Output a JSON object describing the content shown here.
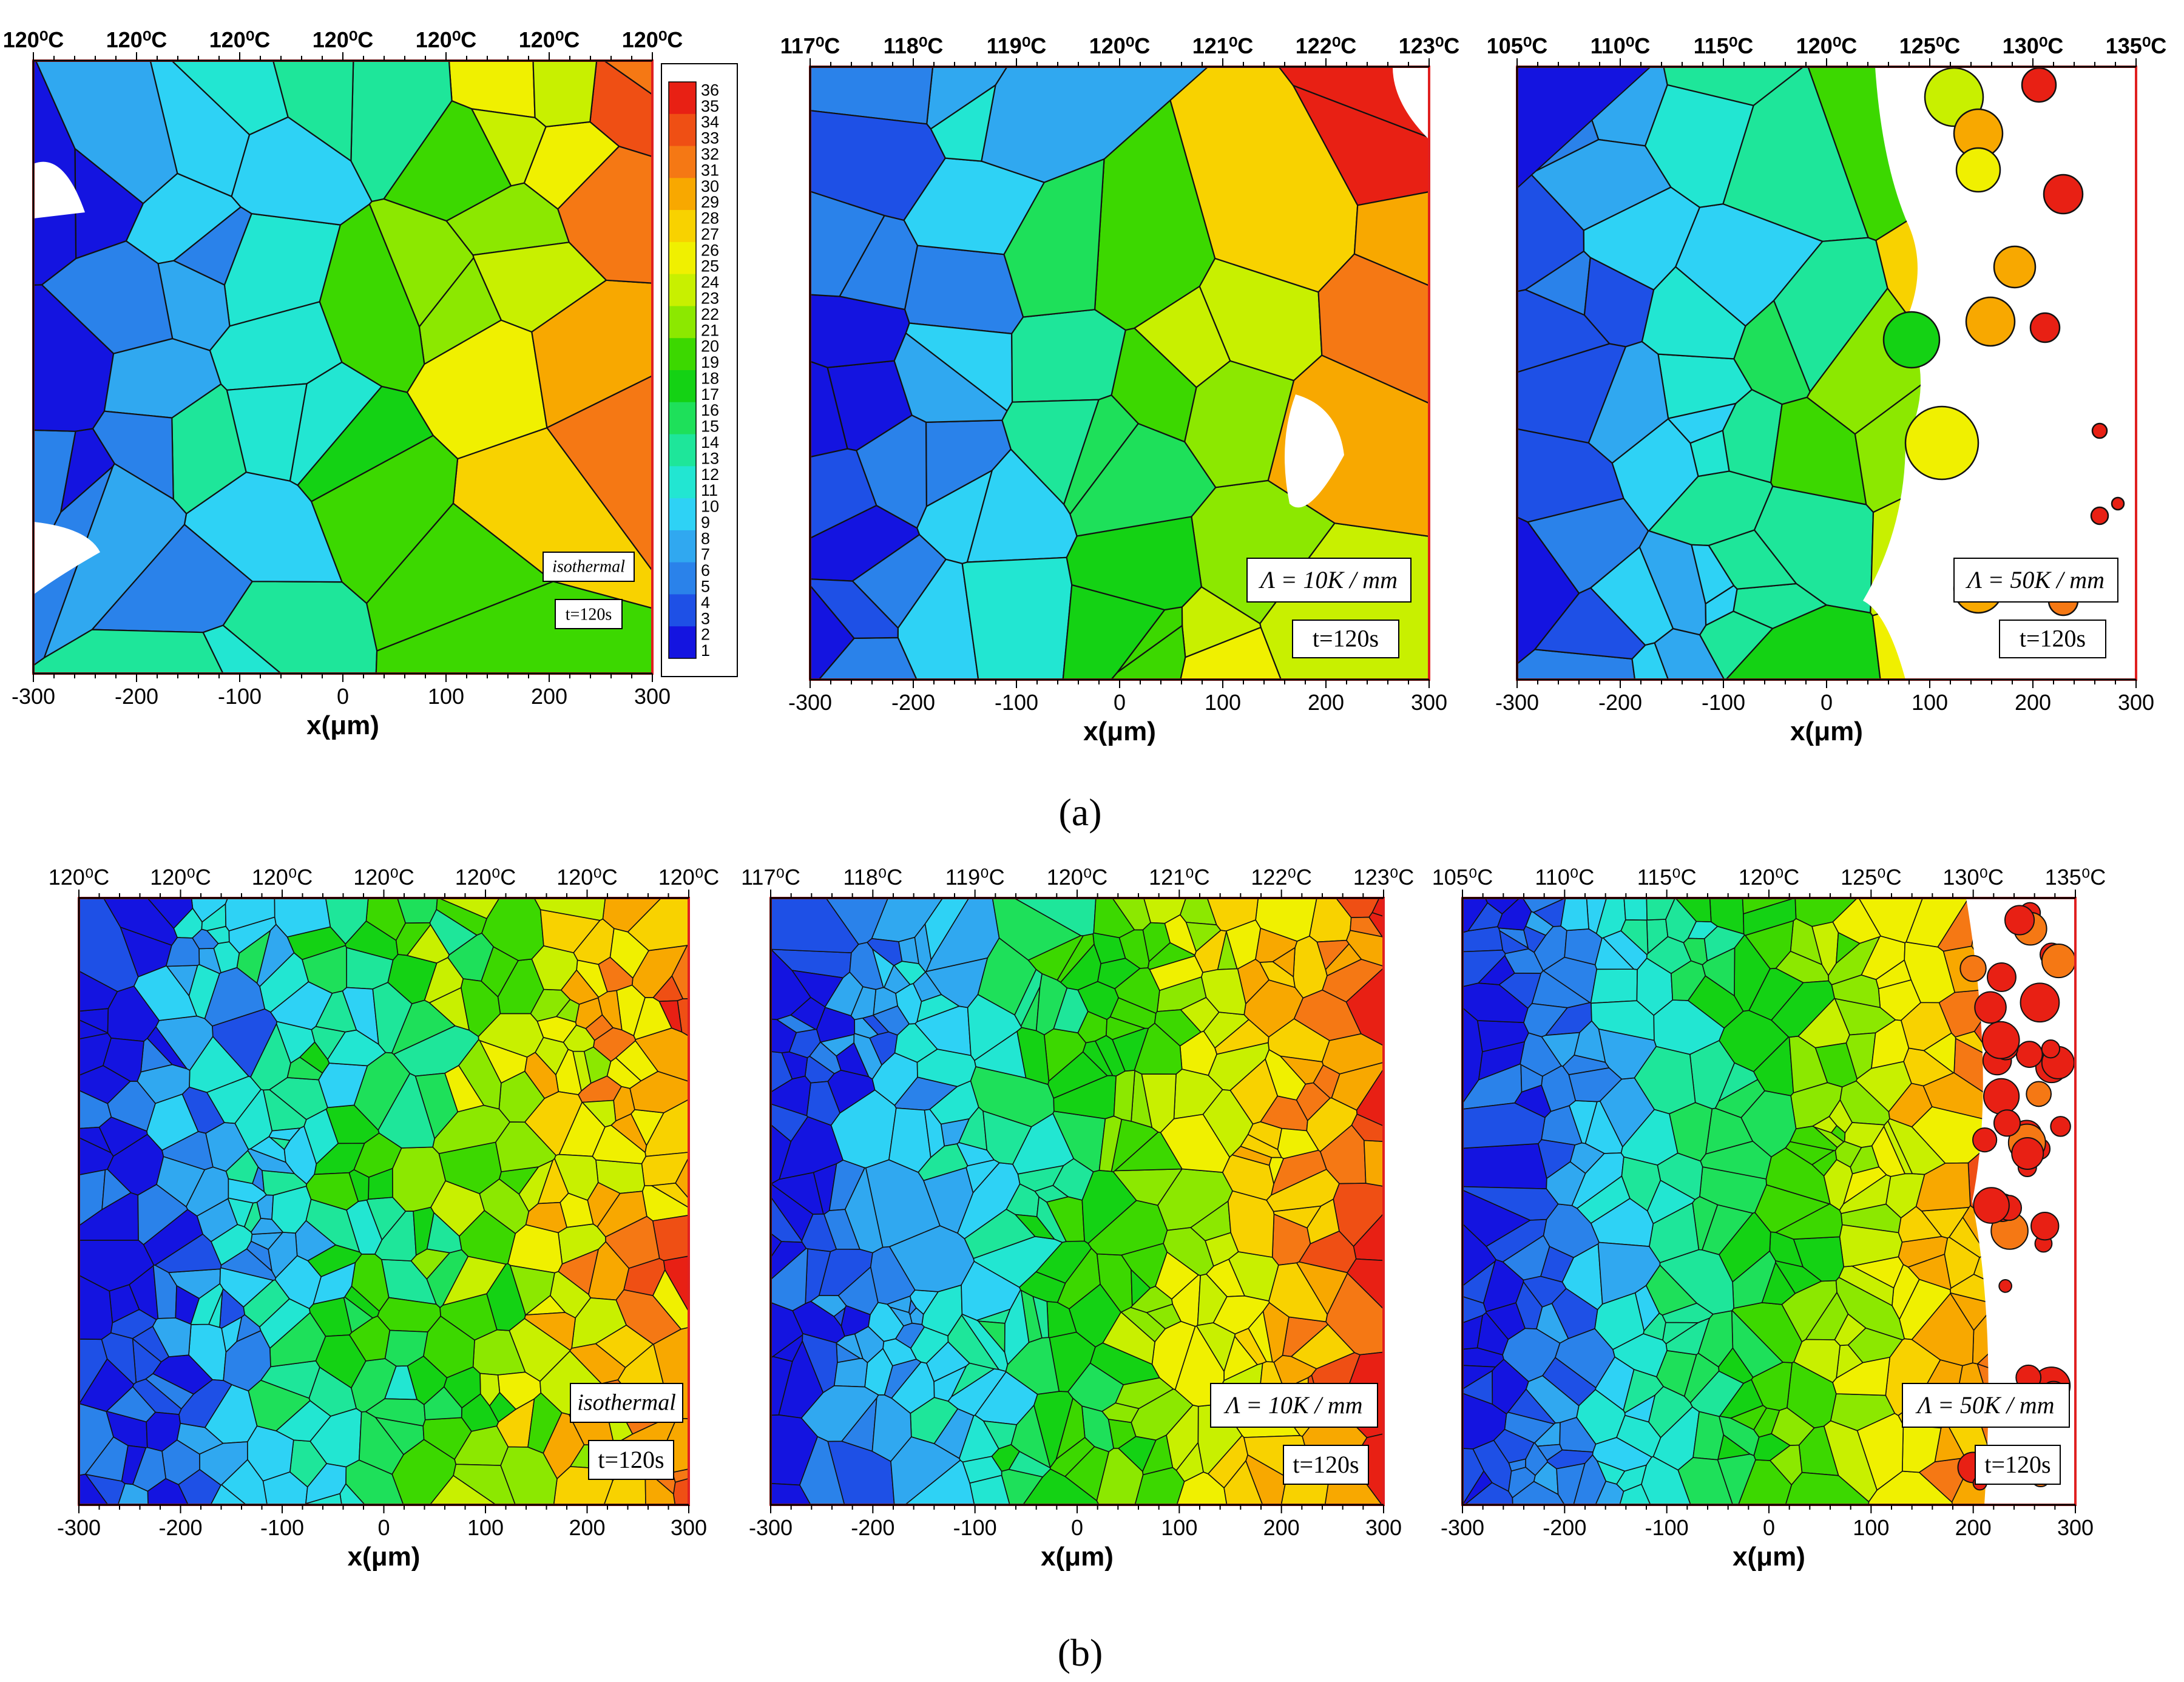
{
  "figure": {
    "caption_a": "(a)",
    "caption_b": "(b)"
  },
  "grain_colors": [
    "#1414e0",
    "#1e50e6",
    "#2a82ea",
    "#30a8f0",
    "#2ed2f5",
    "#22e6d2",
    "#1ee69a",
    "#1ee05a",
    "#14d214",
    "#3cd800",
    "#8ce800",
    "#c8f000",
    "#f0f000",
    "#f8d200",
    "#f8a800",
    "#f57814",
    "#ef4f14",
    "#e82014"
  ],
  "panels": [
    {
      "id": "a1",
      "temps": [
        "120⁰C",
        "120⁰C",
        "120⁰C",
        "120⁰C",
        "120⁰C",
        "120⁰C",
        "120⁰C"
      ],
      "xticks": [
        "-300",
        "-200",
        "-100",
        "0",
        "100",
        "200",
        "300"
      ],
      "xlabel": "x(μm)",
      "annotation": "isothermal",
      "time": "t=120s"
    },
    {
      "id": "a2",
      "temps": [
        "117⁰C",
        "118⁰C",
        "119⁰C",
        "120⁰C",
        "121⁰C",
        "122⁰C",
        "123⁰C"
      ],
      "xticks": [
        "-300",
        "-200",
        "-100",
        "0",
        "100",
        "200",
        "300"
      ],
      "xlabel": "x(μm)",
      "annotation": "Λ = 10K / mm",
      "time": "t=120s"
    },
    {
      "id": "a3",
      "temps": [
        "105⁰C",
        "110⁰C",
        "115⁰C",
        "120⁰C",
        "125⁰C",
        "130⁰C",
        "135⁰C"
      ],
      "xticks": [
        "-300",
        "-200",
        "-100",
        "0",
        "100",
        "200",
        "300"
      ],
      "xlabel": "x(μm)",
      "annotation": "Λ = 50K / mm",
      "time": "t=120s"
    },
    {
      "id": "b1",
      "temps": [
        "120⁰C",
        "120⁰C",
        "120⁰C",
        "120⁰C",
        "120⁰C",
        "120⁰C",
        "120⁰C"
      ],
      "xticks": [
        "-300",
        "-200",
        "-100",
        "0",
        "100",
        "200",
        "300"
      ],
      "xlabel": "x(μm)",
      "annotation": "isothermal",
      "time": "t=120s"
    },
    {
      "id": "b2",
      "temps": [
        "117⁰C",
        "118⁰C",
        "119⁰C",
        "120⁰C",
        "121⁰C",
        "122⁰C",
        "123⁰C"
      ],
      "xticks": [
        "-300",
        "-200",
        "-100",
        "0",
        "100",
        "200",
        "300"
      ],
      "xlabel": "x(μm)",
      "annotation": "Λ = 10K / mm",
      "time": "t=120s"
    },
    {
      "id": "b3",
      "temps": [
        "105⁰C",
        "110⁰C",
        "115⁰C",
        "120⁰C",
        "125⁰C",
        "130⁰C",
        "135⁰C"
      ],
      "xticks": [
        "-300",
        "-200",
        "-100",
        "0",
        "100",
        "200",
        "300"
      ],
      "xlabel": "x(μm)",
      "annotation": "Λ = 50K / mm",
      "time": "t=120s"
    }
  ],
  "colorbar": {
    "labels": [
      "36",
      "35",
      "34",
      "33",
      "32",
      "31",
      "30",
      "29",
      "28",
      "27",
      "26",
      "25",
      "24",
      "23",
      "22",
      "21",
      "20",
      "19",
      "18",
      "17",
      "16",
      "15",
      "14",
      "13",
      "12",
      "11",
      "10",
      "9",
      "8",
      "7",
      "6",
      "5",
      "4",
      "3",
      "2",
      "1"
    ]
  }
}
